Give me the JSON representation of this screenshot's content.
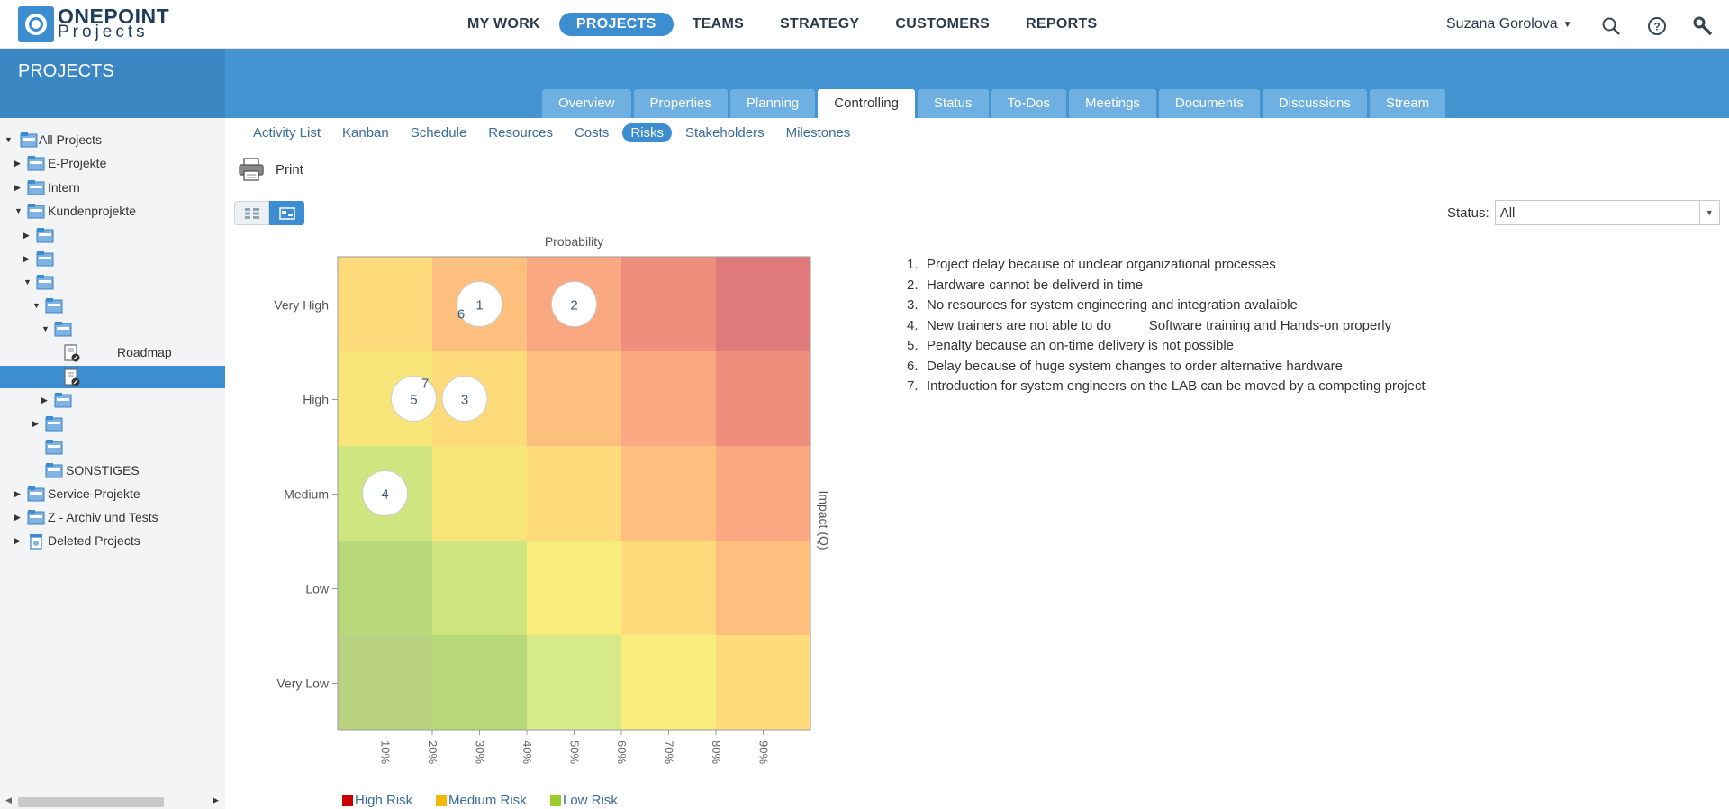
{
  "app": {
    "logo_line1": "ONEPOINT",
    "logo_line2": "Projects"
  },
  "mainnav": [
    "MY WORK",
    "PROJECTS",
    "TEAMS",
    "STRATEGY",
    "CUSTOMERS",
    "REPORTS"
  ],
  "mainnav_active": "PROJECTS",
  "user": {
    "name": "Suzana Gorolova"
  },
  "section_title": "PROJECTS",
  "tabs": [
    "Overview",
    "Properties",
    "Planning",
    "Controlling",
    "Status",
    "To-Dos",
    "Meetings",
    "Documents",
    "Discussions",
    "Stream"
  ],
  "tabs_active": "Controlling",
  "subtabs": [
    "Activity List",
    "Kanban",
    "Schedule",
    "Resources",
    "Costs",
    "Risks",
    "Stakeholders",
    "Milestones"
  ],
  "subtabs_active": "Risks",
  "toolbar": {
    "print_label": "Print"
  },
  "status_filter": {
    "label": "Status:",
    "value": "All"
  },
  "tree": [
    {
      "label": "All Projects"
    },
    {
      "label": "E-Projekte"
    },
    {
      "label": "Intern"
    },
    {
      "label": "Kundenprojekte"
    },
    {
      "label": ""
    },
    {
      "label": ""
    },
    {
      "label": ""
    },
    {
      "label": ""
    },
    {
      "label": ""
    },
    {
      "label": "Roadmap"
    },
    {
      "label": ""
    },
    {
      "label": ""
    },
    {
      "label": ""
    },
    {
      "label": ""
    },
    {
      "label": "SONSTIGES"
    },
    {
      "label": "Service-Projekte"
    },
    {
      "label": "Z - Archiv und Tests"
    },
    {
      "label": "Deleted Projects"
    }
  ],
  "risks": [
    "Project delay because of unclear organizational processes",
    "Hardware cannot be deliverd in time",
    "No resources for system engineering and integration avalaible",
    "New trainers are not able to do          Software training and Hands-on properly",
    "Penalty because an on-time delivery is not possible",
    "Delay because of huge system changes to order alternative hardware",
    "Introduction for system engineers on the LAB can be moved by a competing project"
  ],
  "chart_data": {
    "type": "heatmap",
    "title": "",
    "xlabel": "Probability",
    "ylabel": "Impact (Q)",
    "x_ticks": [
      "10%",
      "20%",
      "30%",
      "40%",
      "50%",
      "60%",
      "70%",
      "80%",
      "90%"
    ],
    "y_categories": [
      "Very High",
      "High",
      "Medium",
      "Low",
      "Very Low"
    ],
    "x_columns": 5,
    "cell_colors": [
      [
        "#fddb7a",
        "#fcbf7d",
        "#f9a882",
        "#f08e7e",
        "#e07a7a"
      ],
      [
        "#f8e579",
        "#fddb7a",
        "#fcbf7d",
        "#f9a882",
        "#f08e7e"
      ],
      [
        "#cee580",
        "#f8e579",
        "#fddb7a",
        "#fcbf7d",
        "#f9a882"
      ],
      [
        "#b8d97a",
        "#cee580",
        "#f8ec7d",
        "#fddb7a",
        "#fcbf7d"
      ],
      [
        "#b9d282",
        "#b8d97a",
        "#d6ea8a",
        "#f8ec7d",
        "#fddb7a"
      ]
    ],
    "points": [
      {
        "id": "1",
        "probability": 30,
        "impact": "Very High"
      },
      {
        "id": "6",
        "probability": 28,
        "impact": "Very High"
      },
      {
        "id": "2",
        "probability": 50,
        "impact": "Very High"
      },
      {
        "id": "7",
        "probability": 20,
        "impact": "High"
      },
      {
        "id": "5",
        "probability": 18,
        "impact": "High"
      },
      {
        "id": "3",
        "probability": 24,
        "impact": "High"
      },
      {
        "id": "4",
        "probability": 10,
        "impact": "Medium"
      }
    ],
    "legend": [
      {
        "name": "High Risk",
        "color": "#cc0000"
      },
      {
        "name": "Medium Risk",
        "color": "#f5b800"
      },
      {
        "name": "Low Risk",
        "color": "#9ccc2c"
      }
    ]
  }
}
